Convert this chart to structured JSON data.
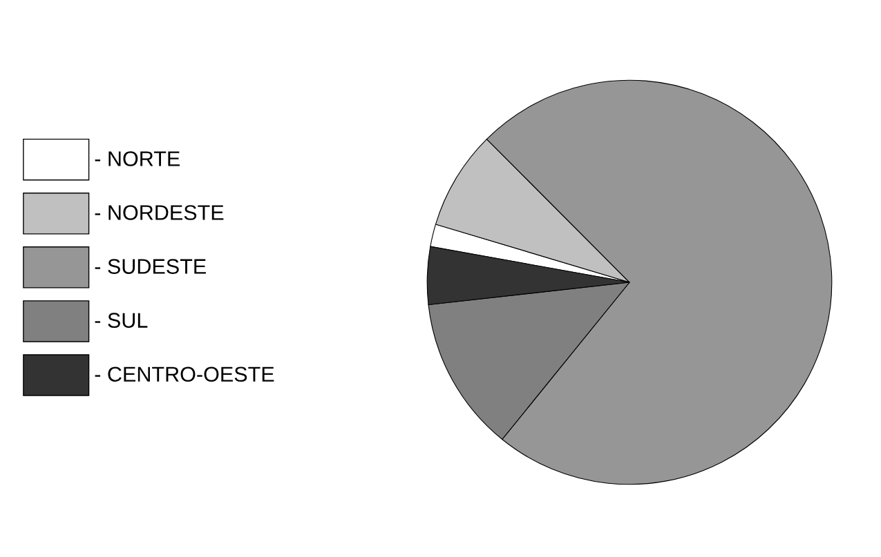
{
  "chart_data": {
    "type": "pie",
    "categories": [
      "- NORTE",
      "- NORDESTE",
      "- SUDESTE",
      "- SUL",
      "- CENTRO-OESTE"
    ],
    "values": [
      1.8,
      7.9,
      73.3,
      12.4,
      4.6
    ],
    "colors": [
      "#ffffff",
      "#c0c0c0",
      "#969696",
      "#808080",
      "#333333"
    ],
    "legend": "left"
  }
}
